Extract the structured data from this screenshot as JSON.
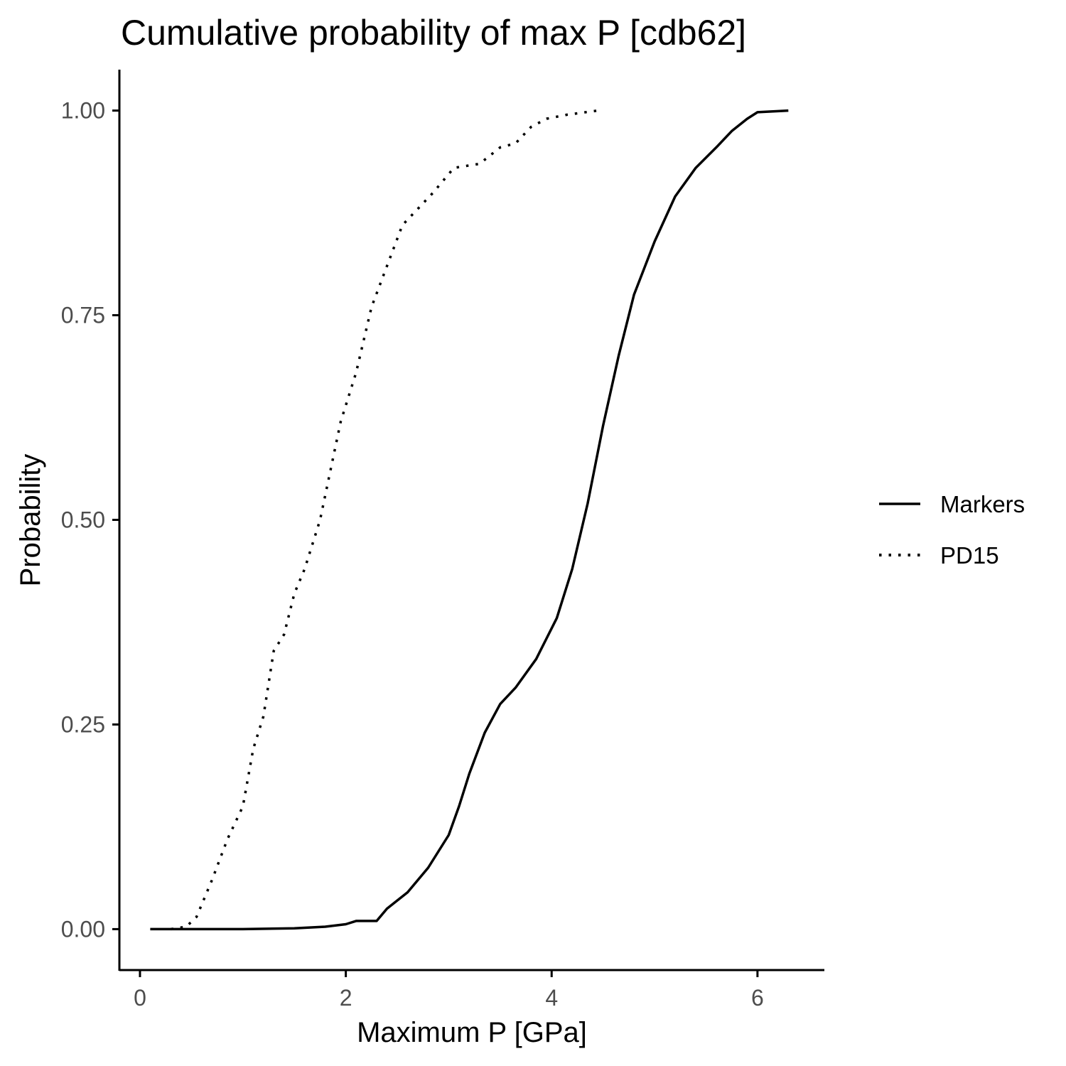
{
  "chart_data": {
    "type": "line",
    "title": "Cumulative probability of max P [cdb62]",
    "xlabel": "Maximum P [GPa]",
    "ylabel": "Probability",
    "xlim": [
      -0.2,
      6.65
    ],
    "ylim": [
      -0.05,
      1.05
    ],
    "x_ticks": [
      0,
      2,
      4,
      6
    ],
    "x_tick_labels": [
      "0",
      "2",
      "4",
      "6"
    ],
    "y_ticks": [
      0,
      0.25,
      0.5,
      0.75,
      1.0
    ],
    "y_tick_labels": [
      "0.00",
      "0.25",
      "0.50",
      "0.75",
      "1.00"
    ],
    "grid": false,
    "legend_position": "right",
    "series": [
      {
        "name": "Markers",
        "line_style": "solid",
        "color": "#000000",
        "x": [
          0.1,
          1.0,
          1.5,
          1.8,
          2.0,
          2.1,
          2.3,
          2.4,
          2.6,
          2.8,
          3.0,
          3.1,
          3.2,
          3.35,
          3.5,
          3.65,
          3.85,
          4.05,
          4.2,
          4.35,
          4.5,
          4.65,
          4.8,
          5.0,
          5.2,
          5.4,
          5.6,
          5.75,
          5.9,
          6.0,
          6.3
        ],
        "y": [
          0.0,
          0.0,
          0.001,
          0.003,
          0.006,
          0.01,
          0.01,
          0.025,
          0.045,
          0.075,
          0.115,
          0.15,
          0.19,
          0.24,
          0.275,
          0.295,
          0.33,
          0.38,
          0.44,
          0.52,
          0.615,
          0.7,
          0.775,
          0.84,
          0.895,
          0.93,
          0.955,
          0.975,
          0.99,
          0.998,
          1.0
        ]
      },
      {
        "name": "PD15",
        "line_style": "dotted",
        "color": "#000000",
        "x": [
          0.3,
          0.45,
          0.55,
          0.7,
          0.85,
          1.0,
          1.1,
          1.2,
          1.3,
          1.4,
          1.5,
          1.6,
          1.7,
          1.75,
          1.85,
          1.95,
          2.1,
          2.25,
          2.4,
          2.55,
          2.7,
          2.85,
          3.05,
          3.3,
          3.5,
          3.65,
          3.8,
          3.95,
          4.15,
          4.45
        ],
        "y": [
          0.0,
          0.003,
          0.015,
          0.06,
          0.11,
          0.15,
          0.22,
          0.26,
          0.34,
          0.36,
          0.41,
          0.44,
          0.48,
          0.5,
          0.56,
          0.62,
          0.68,
          0.76,
          0.81,
          0.86,
          0.88,
          0.9,
          0.93,
          0.935,
          0.955,
          0.96,
          0.98,
          0.99,
          0.995,
          1.0
        ]
      }
    ]
  }
}
